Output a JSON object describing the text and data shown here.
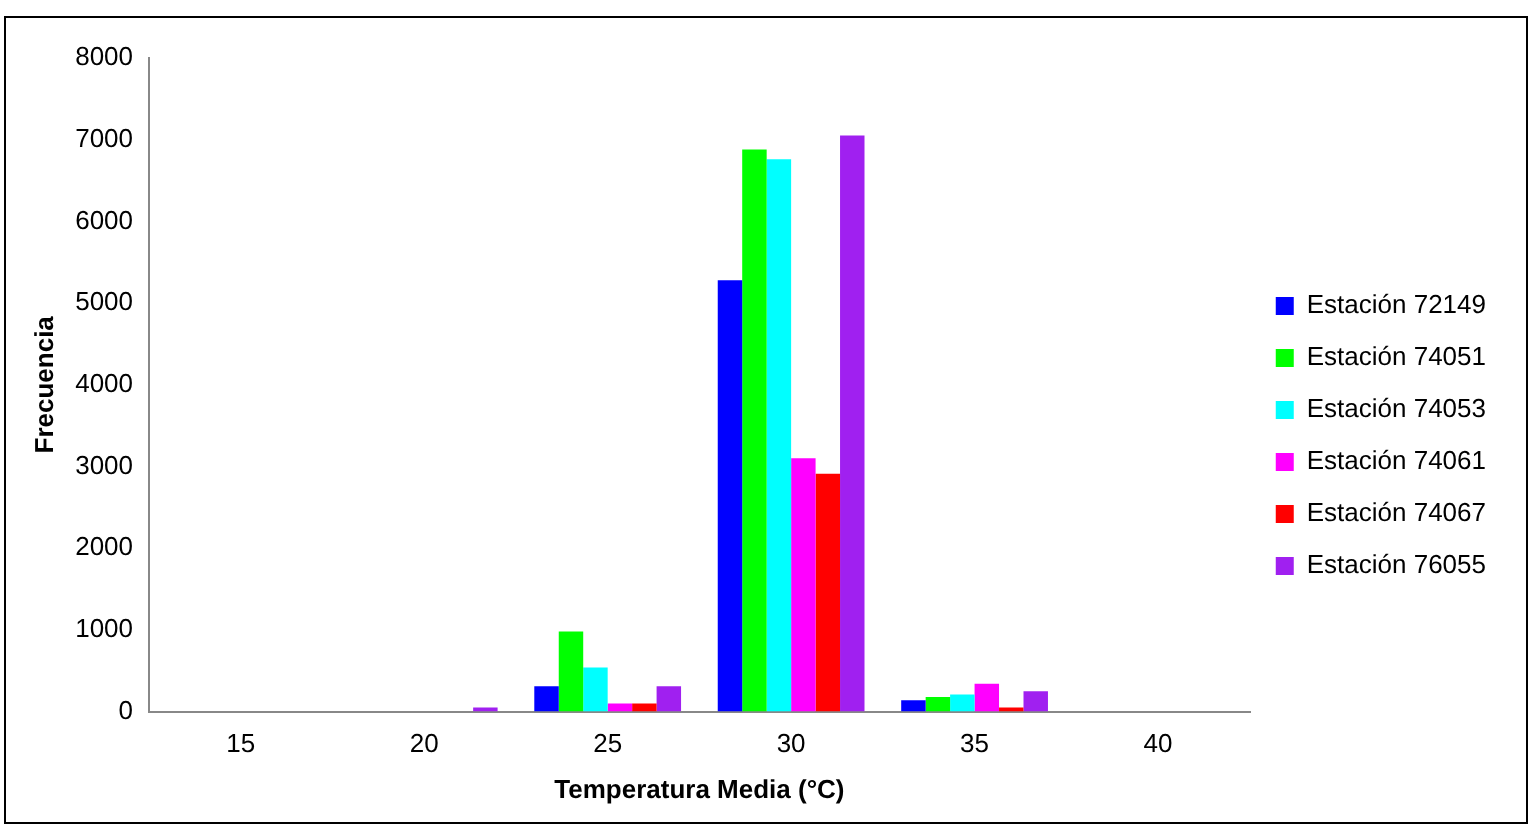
{
  "chart_data": {
    "type": "bar",
    "xlabel": "Temperatura Media (°C)",
    "ylabel": "Frecuencia",
    "categories": [
      "15",
      "20",
      "25",
      "30",
      "35",
      "40"
    ],
    "series": [
      {
        "name": "Estación 72149",
        "color": "#0000ff",
        "values": [
          0,
          0,
          310,
          5280,
          140,
          0
        ]
      },
      {
        "name": "Estación 74051",
        "color": "#00ff00",
        "values": [
          0,
          0,
          980,
          6880,
          180,
          0
        ]
      },
      {
        "name": "Estación 74053",
        "color": "#00ffff",
        "values": [
          0,
          0,
          540,
          6760,
          210,
          0
        ]
      },
      {
        "name": "Estación 74061",
        "color": "#ff00ff",
        "values": [
          0,
          0,
          100,
          3100,
          340,
          0
        ]
      },
      {
        "name": "Estación 74067",
        "color": "#ff0000",
        "values": [
          0,
          0,
          100,
          2910,
          50,
          0
        ]
      },
      {
        "name": "Estación 76055",
        "color": "#a020f0",
        "values": [
          0,
          50,
          310,
          7050,
          250,
          0
        ]
      }
    ],
    "ylim": [
      0,
      8000
    ],
    "yticks": [
      0,
      1000,
      2000,
      3000,
      4000,
      5000,
      6000,
      7000,
      8000
    ],
    "grid": false,
    "legend": "right"
  }
}
